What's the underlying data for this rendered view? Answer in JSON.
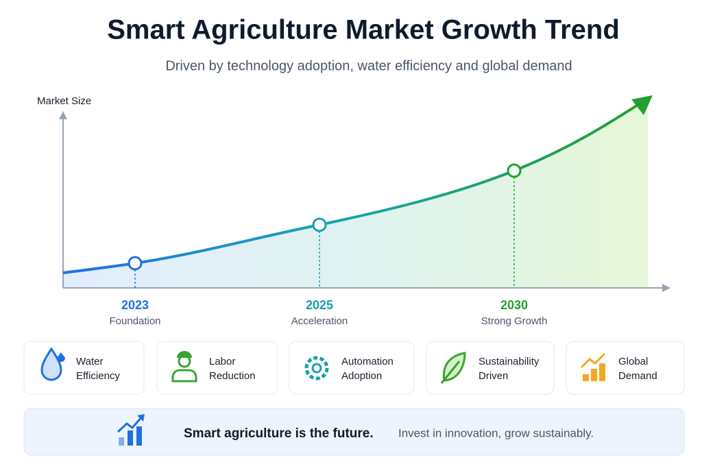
{
  "title": "Smart Agriculture Market Growth Trend",
  "subtitle": "Driven by technology adoption, water efficiency and global demand",
  "chart": {
    "axis_label": "Market Size",
    "milestones": [
      {
        "year": "2023",
        "label": "Foundation"
      },
      {
        "year": "2025",
        "label": "Acceleration"
      },
      {
        "year": "2030",
        "label": "Strong Growth"
      }
    ]
  },
  "drivers": [
    {
      "lines": [
        "Water",
        "Efficiency"
      ]
    },
    {
      "lines": [
        "Labor",
        "Reduction"
      ]
    },
    {
      "lines": [
        "Automation",
        "Adoption"
      ]
    },
    {
      "lines": [
        "Sustainability",
        "Driven"
      ]
    },
    {
      "lines": [
        "Global",
        "Demand"
      ]
    }
  ],
  "banner": {
    "headline": "Smart agriculture is the future.",
    "text": "Invest in innovation, grow sustainably."
  }
}
